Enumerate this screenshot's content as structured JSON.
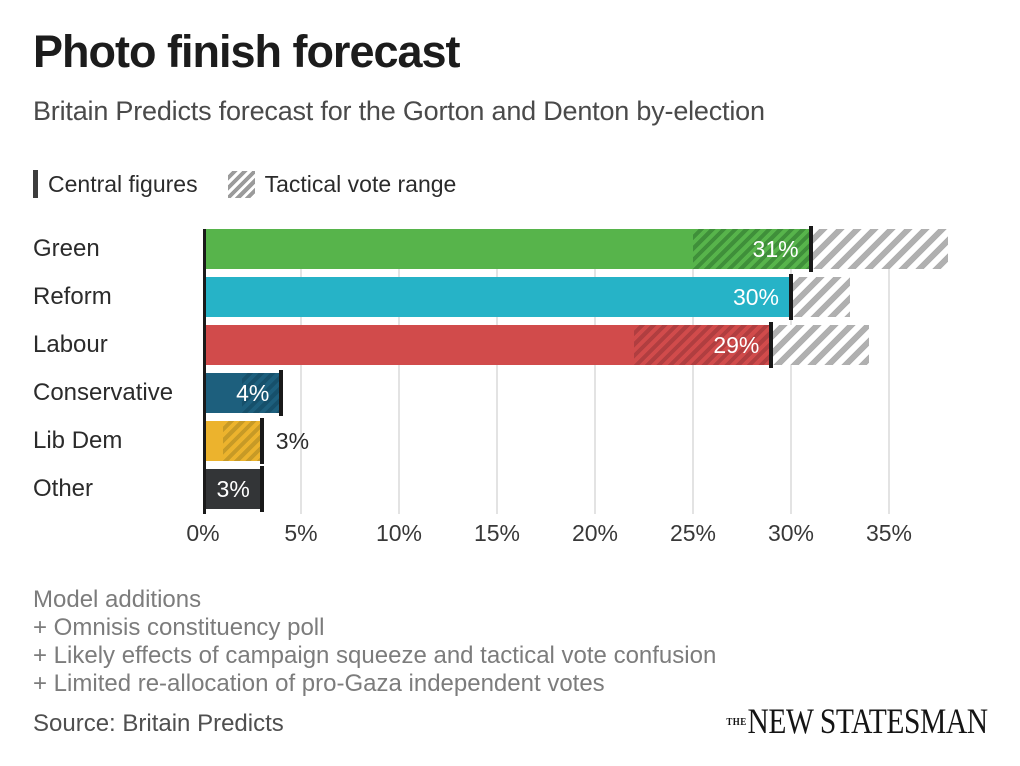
{
  "header": {
    "title": "Photo finish forecast",
    "subtitle": "Britain Predicts forecast for the Gorton and Denton by-election"
  },
  "legend": {
    "central": "Central figures",
    "tactical": "Tactical vote range"
  },
  "chart_data": {
    "type": "bar",
    "orientation": "horizontal",
    "unit": "%",
    "title": "Photo finish forecast",
    "subtitle": "Britain Predicts forecast for the Gorton and Denton by-election",
    "x_axis": {
      "ticks": [
        0,
        5,
        10,
        15,
        20,
        25,
        30,
        35
      ],
      "tick_labels": [
        "0%",
        "5%",
        "10%",
        "15%",
        "20%",
        "25%",
        "30%",
        "35%"
      ],
      "max": 38.5,
      "grid": true
    },
    "parties": [
      {
        "name": "Green",
        "central": 31,
        "range_low": 25,
        "range_high": 38,
        "value_label": "31%",
        "label_inside": true,
        "color": "#57b44b",
        "hatch_color": "#3f8f3a"
      },
      {
        "name": "Reform",
        "central": 30,
        "range_low": 30,
        "range_high": 33,
        "value_label": "30%",
        "label_inside": true,
        "color": "#26b3c7",
        "hatch_color": "#1e93a4"
      },
      {
        "name": "Labour",
        "central": 29,
        "range_low": 22,
        "range_high": 34,
        "value_label": "29%",
        "label_inside": true,
        "color": "#d14b4b",
        "hatch_color": "#b03e40"
      },
      {
        "name": "Conservative",
        "central": 4,
        "range_low": 2,
        "range_high": 4,
        "value_label": "4%",
        "label_inside": true,
        "color": "#1d5f7d",
        "hatch_color": "#16506b"
      },
      {
        "name": "Lib Dem",
        "central": 3,
        "range_low": 1,
        "range_high": 3,
        "value_label": "3%",
        "label_inside": false,
        "color": "#ecb32d",
        "hatch_color": "#c79a26"
      },
      {
        "name": "Other",
        "central": 3,
        "range_low": 3,
        "range_high": 3,
        "value_label": "3%",
        "label_inside": true,
        "color": "#333537",
        "hatch_color": "#333537"
      }
    ],
    "palette": {
      "range_hatch": "#b0b0b0",
      "tick": "#191919",
      "axis_line": "#1a1a1a",
      "gridline": "#e3e3e3"
    },
    "legend": [
      "Central figures",
      "Tactical vote range"
    ]
  },
  "footer": {
    "notes": [
      "Model additions",
      "+ Omnisis constituency poll",
      "+ Likely effects of campaign squeeze and tactical vote confusion",
      "+ Limited re-allocation of pro-Gaza independent votes"
    ],
    "source": "Source: Britain Predicts",
    "logo_the": "THE",
    "logo_main": "NEW STATESMAN"
  }
}
